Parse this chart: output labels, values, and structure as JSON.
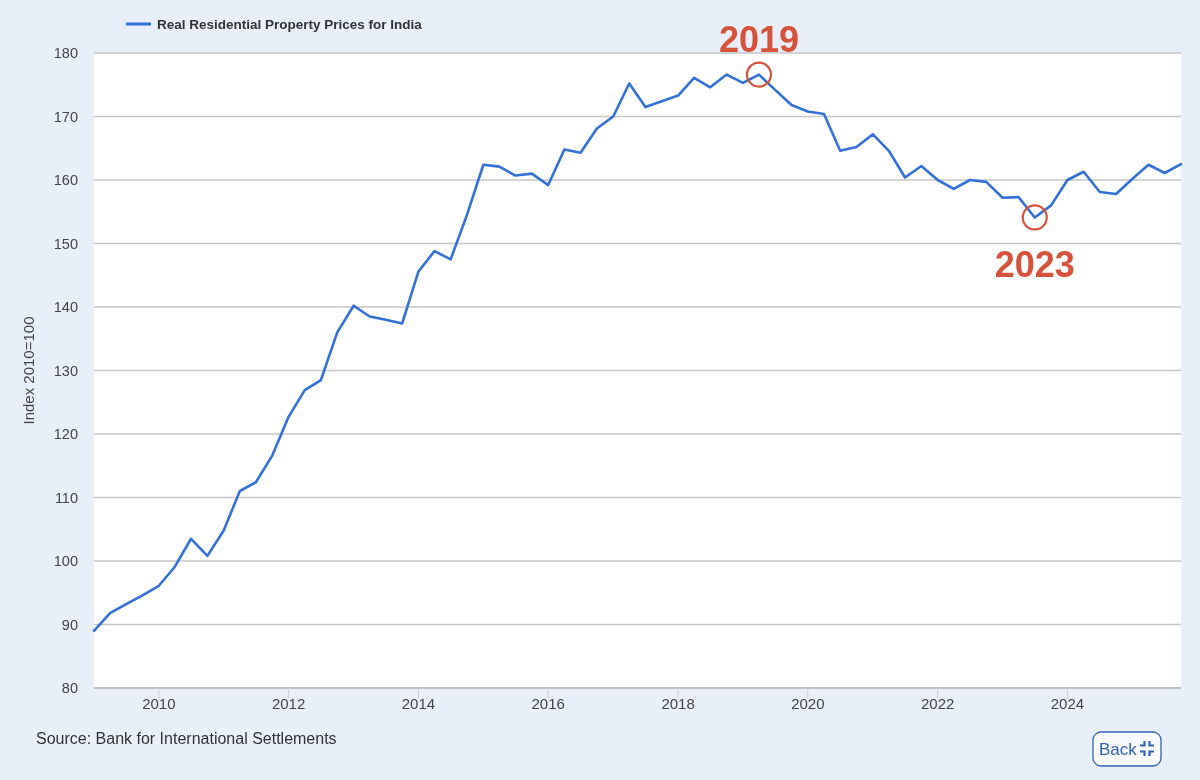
{
  "chart_data": {
    "type": "line",
    "ylabel": "Index 2010=100",
    "x": [
      "2009-01",
      "2009-04",
      "2009-07",
      "2009-10",
      "2010-01",
      "2010-04",
      "2010-07",
      "2010-10",
      "2011-01",
      "2011-04",
      "2011-07",
      "2011-10",
      "2012-01",
      "2012-04",
      "2012-07",
      "2012-10",
      "2013-01",
      "2013-04",
      "2013-07",
      "2013-10",
      "2014-01",
      "2014-04",
      "2014-07",
      "2014-10",
      "2015-01",
      "2015-04",
      "2015-07",
      "2015-10",
      "2016-01",
      "2016-04",
      "2016-07",
      "2016-10",
      "2017-01",
      "2017-04",
      "2017-07",
      "2017-10",
      "2018-01",
      "2018-04",
      "2018-07",
      "2018-10",
      "2019-01",
      "2019-04",
      "2019-07",
      "2019-10",
      "2020-01",
      "2020-04",
      "2020-07",
      "2020-10",
      "2021-01",
      "2021-04",
      "2021-07",
      "2021-10",
      "2022-01",
      "2022-04",
      "2022-07",
      "2022-10",
      "2023-01",
      "2023-04",
      "2023-07",
      "2023-10",
      "2024-01",
      "2024-04",
      "2024-07",
      "2024-10",
      "2025-01",
      "2025-04",
      "2025-07",
      "2025-10"
    ],
    "series": [
      {
        "name": "Real Residential Property Prices for India",
        "color": "#3370d7",
        "values": [
          89.0,
          91.8,
          93.2,
          94.6,
          96.1,
          99.1,
          103.5,
          100.8,
          104.8,
          111.0,
          112.4,
          116.6,
          122.7,
          126.9,
          128.5,
          136.0,
          140.2,
          138.5,
          138.0,
          137.4,
          145.6,
          148.8,
          147.5,
          154.5,
          162.4,
          162.1,
          160.7,
          161.0,
          159.2,
          164.8,
          164.3,
          168.1,
          170.0,
          175.2,
          171.5,
          172.4,
          173.3,
          176.1,
          174.6,
          176.6,
          175.3,
          176.6,
          174.2,
          171.8,
          170.8,
          170.4,
          164.6,
          165.2,
          167.2,
          164.6,
          160.4,
          162.2,
          160.0,
          158.6,
          160.0,
          159.7,
          157.2,
          157.3,
          154.1,
          156.0,
          160.0,
          161.3,
          158.1,
          157.8,
          160.2,
          162.4,
          161.1,
          162.5
        ]
      }
    ],
    "xlim": [
      "2009-01",
      "2025-10"
    ],
    "xticks": [
      "2010",
      "2012",
      "2014",
      "2016",
      "2018",
      "2020",
      "2022",
      "2024"
    ],
    "ylim": [
      80,
      180
    ],
    "yticks": [
      80,
      90,
      100,
      110,
      120,
      130,
      140,
      150,
      160,
      170,
      180
    ],
    "grid": "y",
    "legend": "top left",
    "line_style": "solid",
    "annotations": [
      {
        "text": "2019",
        "x": "2019-04",
        "y": 176.6
      },
      {
        "text": "2023",
        "x": "2023-07",
        "y": 154.1
      },
      "Source: Bank for International Settlements",
      "Back"
    ]
  }
}
